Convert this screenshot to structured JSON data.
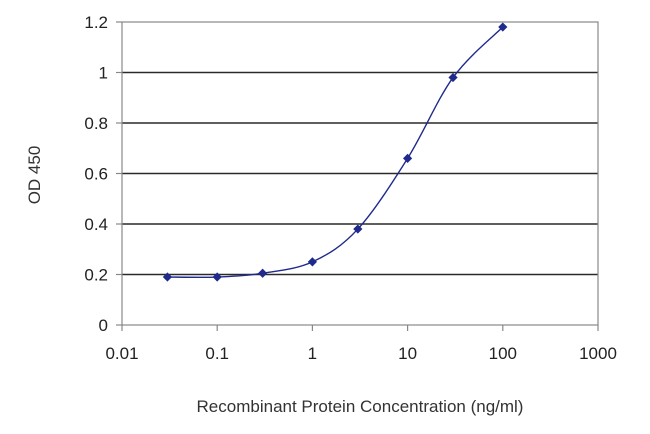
{
  "chart_data": {
    "type": "line",
    "title": "",
    "xlabel": "Recombinant Protein Concentration (ng/ml)",
    "ylabel": "OD 450",
    "x_scale": "log",
    "xlim": [
      0.01,
      1000
    ],
    "ylim": [
      0,
      1.2
    ],
    "x_ticks": [
      0.01,
      0.1,
      1,
      10,
      100,
      1000
    ],
    "x_tick_labels": [
      "0.01",
      "0.1",
      "1",
      "10",
      "100",
      "1000"
    ],
    "y_ticks": [
      0,
      0.2,
      0.4,
      0.6,
      0.8,
      1,
      1.2
    ],
    "y_tick_labels": [
      "0",
      "0.2",
      "0.4",
      "0.6",
      "0.8",
      "1",
      "1.2"
    ],
    "grid": "horizontal",
    "legend": "none",
    "series": [
      {
        "x": [
          0.03,
          0.1,
          0.3,
          1,
          3,
          10,
          30,
          100
        ],
        "y": [
          0.19,
          0.19,
          0.205,
          0.25,
          0.38,
          0.66,
          0.98,
          1.18
        ],
        "color": "#1f2a8c"
      }
    ],
    "frame_color": "#888888",
    "grid_color": "#2a2a2a"
  }
}
